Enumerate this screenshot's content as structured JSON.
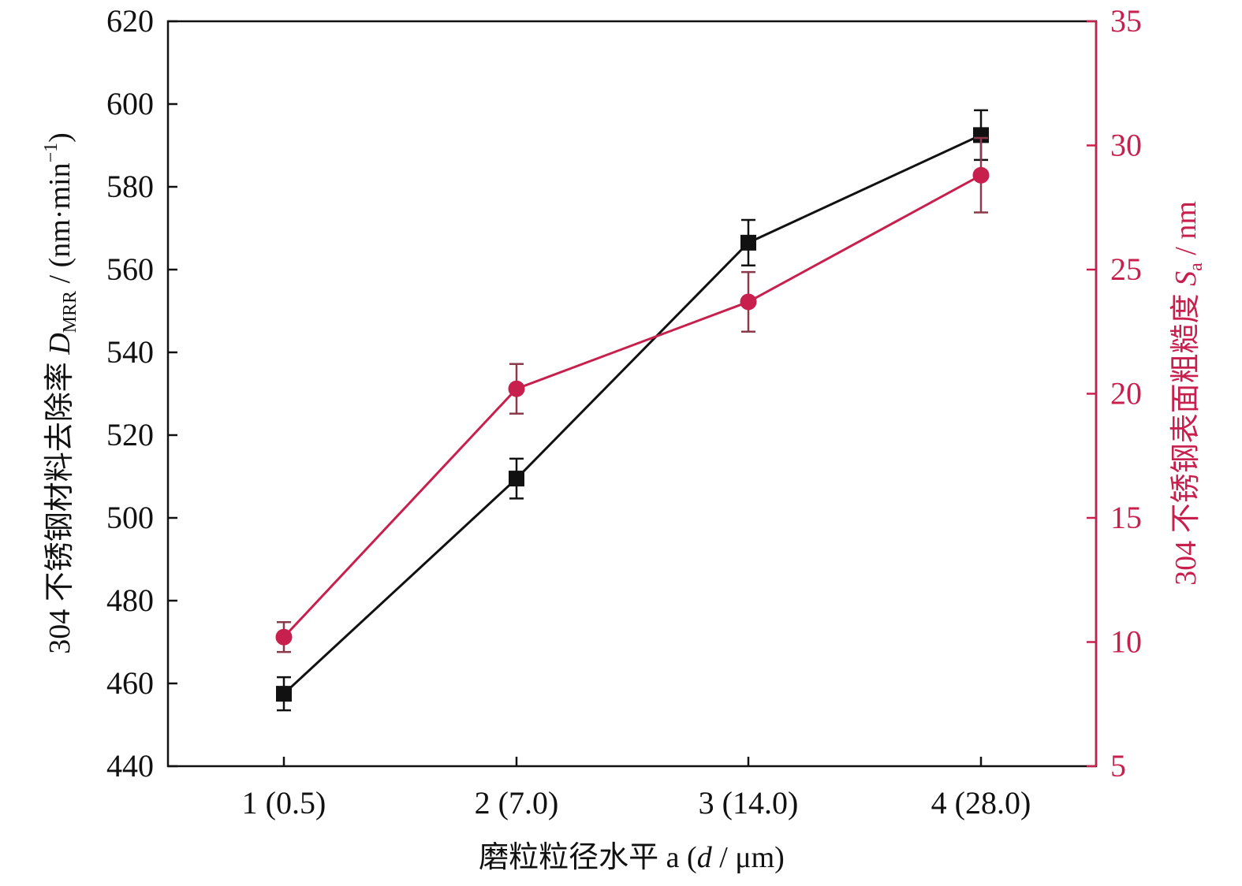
{
  "colors": {
    "left_series": "#111111",
    "right_series": "#C8204E",
    "right_axis": "#C8204E",
    "error_bar_right": "#8A3A4A"
  },
  "chart_data": {
    "type": "line",
    "categories": [
      "1 (0.5)",
      "2 (7.0)",
      "3 (14.0)",
      "4 (28.0)"
    ],
    "x_label": {
      "prefix": "磨粒粒径水平 a (",
      "var": "d",
      "suffix": " / μm)"
    },
    "left_axis": {
      "label": {
        "prefix": "304 不锈钢材料去除率 ",
        "var": "D",
        "sub": "MRR",
        "mid": " / (nm·min",
        "sup": "−1",
        "end": ")"
      },
      "ylim": [
        440,
        620
      ],
      "ticks": [
        440,
        460,
        480,
        500,
        520,
        540,
        560,
        580,
        600,
        620
      ]
    },
    "right_axis": {
      "label": {
        "prefix": "304 不锈钢表面粗糙度 ",
        "var": "S",
        "sub": "a",
        "end": " / nm"
      },
      "ylim": [
        5,
        35
      ],
      "ticks": [
        5,
        10,
        15,
        20,
        25,
        30,
        35
      ]
    },
    "series": [
      {
        "axis": "left",
        "marker": "square",
        "values": [
          457.5,
          509.5,
          566.5,
          592.5
        ],
        "errors": [
          4.0,
          4.8,
          5.5,
          6.0
        ]
      },
      {
        "axis": "right",
        "marker": "circle",
        "values": [
          10.2,
          20.2,
          23.7,
          28.8
        ],
        "errors": [
          0.6,
          1.0,
          1.2,
          1.5
        ]
      }
    ],
    "grid": false,
    "legend": "none"
  }
}
